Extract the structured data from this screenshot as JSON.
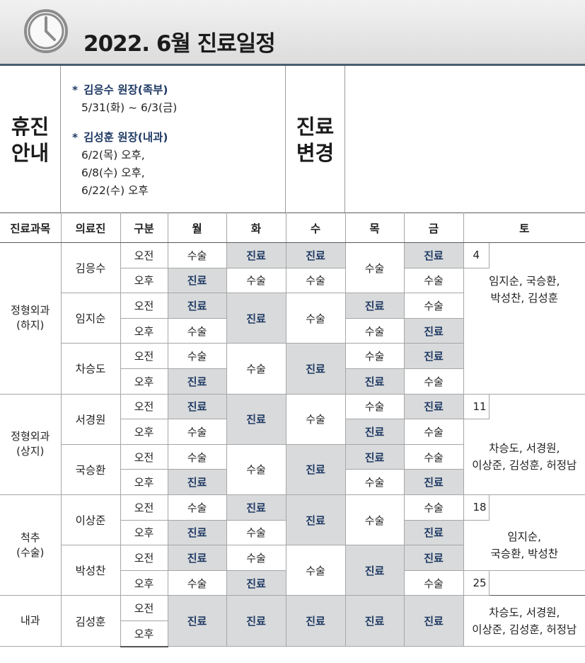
{
  "header": {
    "title": "2022. 6월 진료일정"
  },
  "closure": {
    "label_line1": "휴진",
    "label_line2": "안내",
    "notices": [
      {
        "doctor": "김응수 원장(족부)",
        "dates": [
          "5/31(화) ~ 6/3(금)"
        ]
      },
      {
        "doctor": "김성훈 원장(내과)",
        "dates": [
          "6/2(목) 오후,",
          "6/8(수) 오후,",
          "6/22(수) 오후"
        ]
      }
    ]
  },
  "change": {
    "label_line1": "진료",
    "label_line2": "변경"
  },
  "table": {
    "headers": [
      "진료과목",
      "의료진",
      "구분",
      "월",
      "화",
      "수",
      "목",
      "금",
      "토"
    ],
    "shift_am": "오전",
    "shift_pm": "오후",
    "departments": [
      "정형외과\n(하지)",
      "정형외과\n(상지)",
      "척추\n(수술)",
      "내과"
    ],
    "doctors": [
      "김응수",
      "임지순",
      "차승도",
      "서경원",
      "국승환",
      "이상준",
      "박성찬",
      "김성훈"
    ],
    "cells": {
      "surgery": "수술",
      "clinic": "진료"
    },
    "saturday": [
      {
        "day": "4",
        "names": "임지순, 국승환,\n박성찬, 김성훈"
      },
      {
        "day": "11",
        "names": "차승도, 서경원,\n이상준, 김성훈, 허정남"
      },
      {
        "day": "18",
        "names": "임지순,\n국승환, 박성찬"
      },
      {
        "day": "25",
        "names": "차승도, 서경원,\n이상준, 김성훈, 허정남"
      }
    ]
  }
}
